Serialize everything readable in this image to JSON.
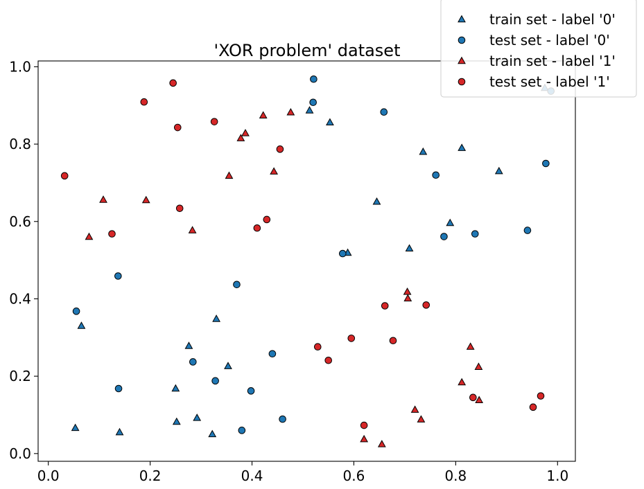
{
  "chart_data": {
    "type": "scatter",
    "title": "'XOR problem' dataset",
    "xlabel": "",
    "ylabel": "",
    "xlim": [
      -0.02,
      1.035
    ],
    "ylim": [
      -0.02,
      1.015
    ],
    "xticks": [
      "0.0",
      "0.2",
      "0.4",
      "0.6",
      "0.8",
      "1.0"
    ],
    "yticks": [
      "0.0",
      "0.2",
      "0.4",
      "0.6",
      "0.8",
      "1.0"
    ],
    "xtick_values": [
      0.0,
      0.2,
      0.4,
      0.6,
      0.8,
      1.0
    ],
    "ytick_values": [
      0.0,
      0.2,
      0.4,
      0.6,
      0.8,
      1.0
    ],
    "grid": false,
    "legend_position": "top-right",
    "series": [
      {
        "name": "train set - label '0'",
        "marker": "triangle",
        "color": "#1f77b4",
        "points": [
          [
            0.053,
            0.066
          ],
          [
            0.14,
            0.055
          ],
          [
            0.065,
            0.33
          ],
          [
            0.25,
            0.168
          ],
          [
            0.252,
            0.082
          ],
          [
            0.292,
            0.092
          ],
          [
            0.322,
            0.05
          ],
          [
            0.276,
            0.278
          ],
          [
            0.33,
            0.348
          ],
          [
            0.353,
            0.226
          ],
          [
            0.513,
            0.887
          ],
          [
            0.553,
            0.856
          ],
          [
            0.588,
            0.519
          ],
          [
            0.645,
            0.651
          ],
          [
            0.709,
            0.53
          ],
          [
            0.736,
            0.78
          ],
          [
            0.789,
            0.596
          ],
          [
            0.812,
            0.79
          ],
          [
            0.885,
            0.73
          ],
          [
            0.975,
            0.945
          ]
        ]
      },
      {
        "name": "test set - label '0'",
        "marker": "circle",
        "color": "#1f77b4",
        "points": [
          [
            0.055,
            0.368
          ],
          [
            0.137,
            0.459
          ],
          [
            0.138,
            0.168
          ],
          [
            0.284,
            0.237
          ],
          [
            0.328,
            0.188
          ],
          [
            0.37,
            0.437
          ],
          [
            0.38,
            0.06
          ],
          [
            0.398,
            0.162
          ],
          [
            0.44,
            0.258
          ],
          [
            0.46,
            0.089
          ],
          [
            0.52,
            0.908
          ],
          [
            0.521,
            0.968
          ],
          [
            0.578,
            0.517
          ],
          [
            0.659,
            0.883
          ],
          [
            0.761,
            0.72
          ],
          [
            0.777,
            0.561
          ],
          [
            0.838,
            0.568
          ],
          [
            0.941,
            0.577
          ],
          [
            0.977,
            0.75
          ],
          [
            0.987,
            0.937
          ]
        ]
      },
      {
        "name": "train set - label '1'",
        "marker": "triangle",
        "color": "#d62728",
        "points": [
          [
            0.08,
            0.56
          ],
          [
            0.108,
            0.656
          ],
          [
            0.192,
            0.655
          ],
          [
            0.283,
            0.577
          ],
          [
            0.355,
            0.718
          ],
          [
            0.378,
            0.815
          ],
          [
            0.387,
            0.828
          ],
          [
            0.422,
            0.874
          ],
          [
            0.443,
            0.729
          ],
          [
            0.476,
            0.882
          ],
          [
            0.62,
            0.037
          ],
          [
            0.655,
            0.024
          ],
          [
            0.705,
            0.418
          ],
          [
            0.706,
            0.401
          ],
          [
            0.72,
            0.113
          ],
          [
            0.732,
            0.088
          ],
          [
            0.812,
            0.184
          ],
          [
            0.829,
            0.276
          ],
          [
            0.845,
            0.224
          ],
          [
            0.846,
            0.138
          ]
        ]
      },
      {
        "name": "test set - label '1'",
        "marker": "circle",
        "color": "#d62728",
        "points": [
          [
            0.032,
            0.718
          ],
          [
            0.125,
            0.568
          ],
          [
            0.188,
            0.909
          ],
          [
            0.245,
            0.958
          ],
          [
            0.254,
            0.843
          ],
          [
            0.258,
            0.634
          ],
          [
            0.326,
            0.858
          ],
          [
            0.41,
            0.583
          ],
          [
            0.429,
            0.605
          ],
          [
            0.455,
            0.787
          ],
          [
            0.529,
            0.276
          ],
          [
            0.55,
            0.241
          ],
          [
            0.595,
            0.298
          ],
          [
            0.62,
            0.073
          ],
          [
            0.661,
            0.382
          ],
          [
            0.677,
            0.292
          ],
          [
            0.742,
            0.384
          ],
          [
            0.834,
            0.145
          ],
          [
            0.952,
            0.12
          ],
          [
            0.967,
            0.149
          ]
        ]
      }
    ]
  }
}
